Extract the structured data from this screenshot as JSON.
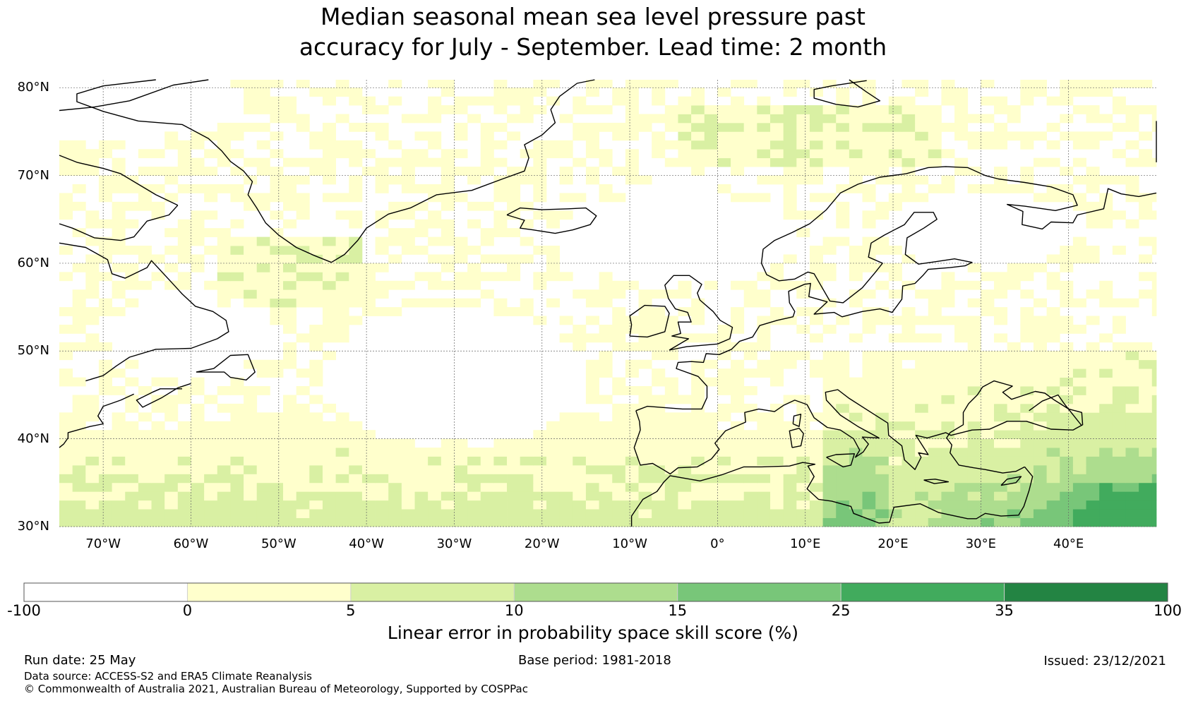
{
  "title": {
    "line1": "Median seasonal mean sea level pressure past",
    "line2": "accuracy for July - September. Lead time: 2 month"
  },
  "map": {
    "lon_range": [
      -75,
      50
    ],
    "lat_range": [
      30,
      81
    ],
    "lat_ticks": [
      "30°N",
      "40°N",
      "50°N",
      "60°N",
      "70°N",
      "80°N"
    ],
    "lat_values": [
      30,
      40,
      50,
      60,
      70,
      80
    ],
    "lon_ticks": [
      "70°W",
      "60°W",
      "50°W",
      "40°W",
      "30°W",
      "20°W",
      "10°W",
      "0°",
      "10°E",
      "20°E",
      "30°E",
      "40°E"
    ],
    "lon_values": [
      -70,
      -60,
      -50,
      -40,
      -30,
      -20,
      -10,
      0,
      10,
      20,
      30,
      40
    ],
    "colors": [
      "#ffffff",
      "#ffffcc",
      "#d9f0a3",
      "#addd8e",
      "#78c679",
      "#41ab5d",
      "#238443"
    ]
  },
  "colorbar": {
    "ticks": [
      "-100",
      "0",
      "5",
      "10",
      "15",
      "25",
      "35",
      "100"
    ],
    "colors": [
      "#ffffff",
      "#ffffcc",
      "#d9f0a3",
      "#addd8e",
      "#78c679",
      "#41ab5d",
      "#238443"
    ],
    "label": "Linear error in probability space skill score (%)"
  },
  "footer": {
    "run_date": "Run date: 25 May",
    "base_period": "Base period: 1981-2018",
    "issued": "Issued: 23/12/2021",
    "data_source": "Data source: ACCESS-S2 and ERA5 Climate Reanalysis",
    "copyright": "© Commonwealth of Australia 2021, Australian Bureau of Meteorology, Supported by COSPPac"
  }
}
